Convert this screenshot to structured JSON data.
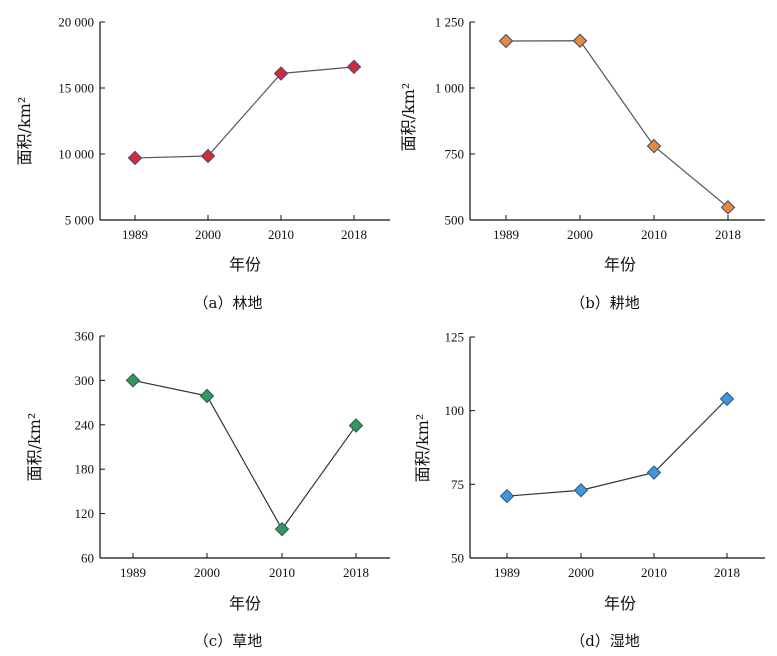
{
  "chart_data": [
    {
      "type": "line",
      "caption": "（a）林地",
      "xlabel": "年份",
      "ylabel": "面积/km²",
      "categories": [
        "1989",
        "2000",
        "2010",
        "2018"
      ],
      "values": [
        9700,
        9850,
        16100,
        16600
      ],
      "ylim": [
        5000,
        20000
      ],
      "yticks": [
        5000,
        10000,
        15000,
        20000
      ],
      "ytick_labels": [
        "5 000",
        "10 000",
        "15 000",
        "20 000"
      ],
      "marker_color": "#d62a3a",
      "marker_edge": "#4a4a7a",
      "line_color": "#555555"
    },
    {
      "type": "line",
      "caption": "（b）耕地",
      "xlabel": "年份",
      "ylabel": "面积/km²",
      "categories": [
        "1989",
        "2000",
        "2010",
        "2018"
      ],
      "values": [
        1178,
        1179,
        780,
        548
      ],
      "ylim": [
        500,
        1250
      ],
      "yticks": [
        500,
        750,
        1000,
        1250
      ],
      "ytick_labels": [
        "500",
        "750",
        "1 000",
        "1 250"
      ],
      "marker_color": "#e8893a",
      "marker_edge": "#4a4a7a",
      "line_color": "#555555"
    },
    {
      "type": "line",
      "caption": "（c）草地",
      "xlabel": "年份",
      "ylabel": "面积/km²",
      "categories": [
        "1989",
        "2000",
        "2010",
        "2018"
      ],
      "values": [
        300,
        279,
        99,
        239
      ],
      "ylim": [
        60,
        360
      ],
      "yticks": [
        60,
        120,
        180,
        240,
        300,
        360
      ],
      "ytick_labels": [
        "60",
        "120",
        "180",
        "240",
        "300",
        "360"
      ],
      "marker_color": "#2e9a5e",
      "marker_edge": "#3a5a5a",
      "line_color": "#333333"
    },
    {
      "type": "line",
      "caption": "（d）湿地",
      "xlabel": "年份",
      "ylabel": "面积/km²",
      "categories": [
        "1989",
        "2000",
        "2010",
        "2018"
      ],
      "values": [
        71,
        73,
        79,
        104
      ],
      "ylim": [
        50,
        125
      ],
      "yticks": [
        50,
        75,
        100,
        125
      ],
      "ytick_labels": [
        "50",
        "75",
        "100",
        "125"
      ],
      "marker_color": "#3d97d8",
      "marker_edge": "#3a5a8a",
      "line_color": "#333333"
    }
  ]
}
